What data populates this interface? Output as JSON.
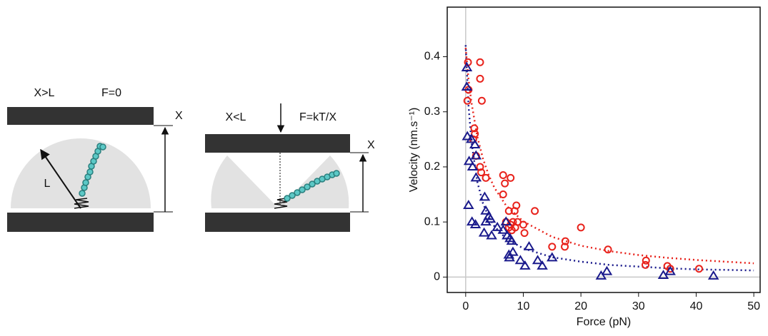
{
  "diagram": {
    "left_label": "X>L",
    "left_force": "F=0",
    "left_gap": "X",
    "length": "L",
    "right_label": "X<L",
    "right_force": "F=kT/X",
    "right_gap": "X"
  },
  "chart_data": {
    "type": "scatter",
    "x_label": "Force (pN)",
    "y_label": "Velocity (nm.s⁻¹)",
    "xlim": [
      -3.2,
      51.1
    ],
    "ylim": [
      -0.028,
      0.49
    ],
    "xticks": [
      0,
      10,
      20,
      30,
      40,
      50
    ],
    "yticks": [
      0,
      0.1,
      0.2,
      0.3,
      0.4
    ],
    "series": [
      {
        "color": "#e8221b",
        "marker": "circle",
        "x": [
          0.4,
          2.5,
          2.5,
          0.5,
          2.8,
          0.3,
          1.5,
          1.6,
          1.3,
          1.8,
          2.5,
          2.7,
          3.5,
          6.5,
          6.8,
          7.8,
          6.5,
          7.5,
          8.8,
          8.5,
          12,
          7,
          7.8,
          8.2,
          8.6,
          9,
          10,
          10.2,
          7.5,
          8,
          20,
          17.3,
          17.2,
          15,
          24.7,
          31.3,
          31.2,
          35,
          35.5,
          40.5
        ],
        "values": [
          0.39,
          0.39,
          0.36,
          0.34,
          0.32,
          0.32,
          0.27,
          0.26,
          0.25,
          0.22,
          0.2,
          0.19,
          0.18,
          0.185,
          0.17,
          0.18,
          0.15,
          0.12,
          0.13,
          0.12,
          0.12,
          0.1,
          0.095,
          0.1,
          0.09,
          0.1,
          0.095,
          0.08,
          0.09,
          0.085,
          0.09,
          0.065,
          0.055,
          0.055,
          0.05,
          0.03,
          0.022,
          0.02,
          0.015,
          0.015
        ]
      },
      {
        "color": "#1a1a8c",
        "marker": "triangle",
        "x": [
          0.2,
          0.2,
          0.3,
          1,
          1.6,
          1.8,
          0.6,
          1.2,
          1.8,
          3.3,
          0.5,
          3.5,
          4,
          4.3,
          1.1,
          1.7,
          3.5,
          3.2,
          4.5,
          5.5,
          6.5,
          7,
          7.2,
          7.7,
          8,
          7.5,
          8.2,
          7.6,
          9.5,
          10.3,
          11,
          12.5,
          13.3,
          15,
          23.5,
          24.5,
          34.3,
          35.5,
          43
        ],
        "values": [
          0.38,
          0.345,
          0.255,
          0.25,
          0.24,
          0.22,
          0.21,
          0.2,
          0.18,
          0.145,
          0.13,
          0.12,
          0.11,
          0.105,
          0.1,
          0.095,
          0.1,
          0.08,
          0.075,
          0.09,
          0.085,
          0.1,
          0.075,
          0.07,
          0.065,
          0.04,
          0.045,
          0.035,
          0.03,
          0.02,
          0.055,
          0.03,
          0.02,
          0.035,
          0.002,
          0.01,
          0.003,
          0.01,
          0.002
        ]
      }
    ],
    "fits": [
      {
        "color": "#e8221b",
        "x": [
          0,
          0.5,
          1,
          2,
          3,
          4,
          5,
          7,
          10,
          15,
          20,
          25,
          30,
          35,
          40,
          45,
          50
        ],
        "values": [
          0.416,
          0.359,
          0.317,
          0.256,
          0.215,
          0.185,
          0.162,
          0.13,
          0.101,
          0.073,
          0.057,
          0.047,
          0.04,
          0.035,
          0.031,
          0.028,
          0.025
        ]
      },
      {
        "color": "#1a1a8c",
        "x": [
          0,
          0.5,
          1,
          2,
          3,
          4,
          5,
          7,
          10,
          15,
          20,
          25,
          30,
          35,
          40,
          45,
          50
        ],
        "values": [
          0.421,
          0.311,
          0.246,
          0.174,
          0.134,
          0.109,
          0.092,
          0.07,
          0.052,
          0.036,
          0.028,
          0.022,
          0.019,
          0.016,
          0.014,
          0.013,
          0.012
        ]
      }
    ],
    "zero_lines": true
  }
}
